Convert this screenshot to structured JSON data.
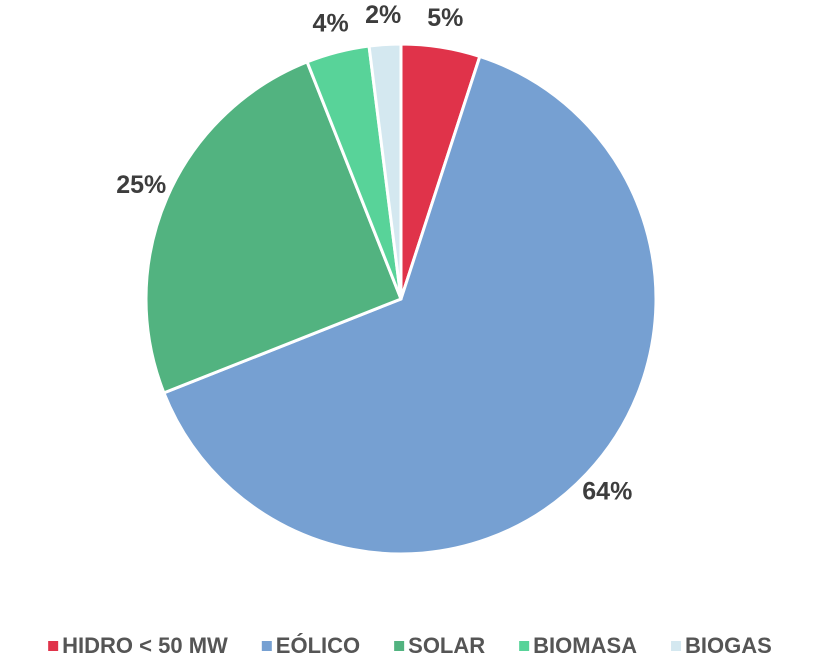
{
  "chart_data": {
    "type": "pie",
    "categories": [
      "HIDRO < 50 MW",
      "EÓLICO",
      "SOLAR",
      "BIOMASA",
      "BIOGAS"
    ],
    "values": [
      5,
      64,
      25,
      4,
      2
    ],
    "value_labels": [
      "5%",
      "64%",
      "25%",
      "4%",
      "2%"
    ],
    "colors": [
      "#e0334a",
      "#76a0d2",
      "#52b380",
      "#58d399",
      "#d4e8f0"
    ],
    "legend": "bottom"
  }
}
